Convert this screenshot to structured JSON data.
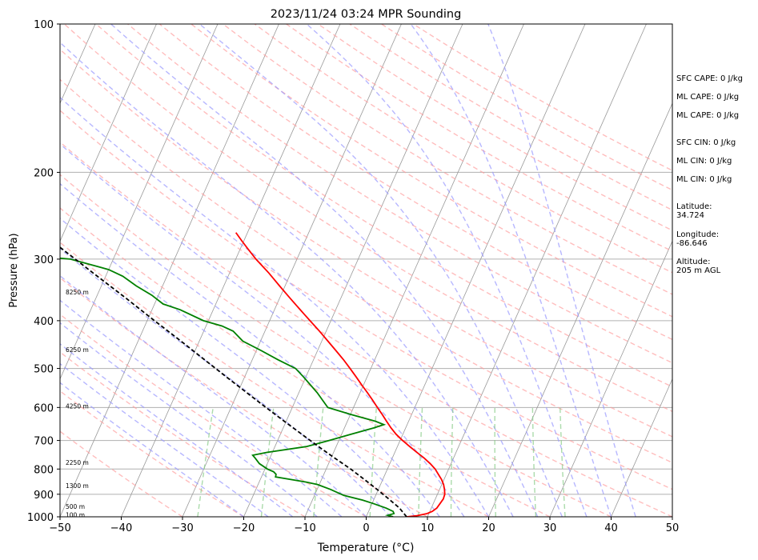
{
  "chart_data": {
    "type": "line",
    "subtype": "skew-t log-p sounding",
    "title": "2023/11/24 03:24 MPR Sounding",
    "xlabel": "Temperature (°C)",
    "ylabel": "Pressure (hPa)",
    "xlim": [
      -50,
      50
    ],
    "ylim": [
      1000,
      100
    ],
    "y_scale": "log",
    "x_ticks": [
      "−50",
      "−40",
      "−30",
      "−20",
      "−10",
      "0",
      "10",
      "20",
      "30",
      "40",
      "50"
    ],
    "y_ticks": [
      1000,
      900,
      800,
      700,
      600,
      500,
      400,
      300,
      200,
      100
    ],
    "grid": true,
    "colors": {
      "temperature": "#ff0000",
      "dewpoint": "#008000",
      "parcel": "#000000",
      "dry_adiabats": "#ff9999",
      "moist_adiabats": "#9999ff",
      "mixing_ratio": "#88cc88",
      "isotherms": "#999999"
    },
    "series": [
      {
        "key": "temperature",
        "pressure": [
          1000,
          995,
          985,
          975,
          960,
          940,
          920,
          900,
          880,
          860,
          840,
          820,
          800,
          780,
          760,
          740,
          720,
          700,
          680,
          660,
          640,
          620,
          600,
          580,
          560,
          540,
          520,
          500,
          480,
          460,
          440,
          420,
          400,
          380,
          360,
          340,
          320,
          300,
          285,
          275,
          265
        ],
        "temperature": [
          6.6,
          8.2,
          9.7,
          10.4,
          10.9,
          11.1,
          11.3,
          11.2,
          10.8,
          10.3,
          9.6,
          8.7,
          7.8,
          6.6,
          5.2,
          3.6,
          2.0,
          0.4,
          -1.1,
          -2.4,
          -3.6,
          -4.8,
          -6.1,
          -7.4,
          -8.8,
          -10.3,
          -11.8,
          -13.4,
          -15.1,
          -17.0,
          -19.0,
          -21.1,
          -23.4,
          -25.8,
          -28.3,
          -30.9,
          -33.6,
          -36.7,
          -38.9,
          -40.4,
          -41.9
        ]
      },
      {
        "key": "dewpoint",
        "pressure": [
          1000,
          993,
          985,
          975,
          960,
          940,
          925,
          905,
          880,
          860,
          850,
          840,
          830,
          820,
          810,
          800,
          780,
          760,
          750,
          740,
          720,
          700,
          680,
          660,
          650,
          640,
          620,
          600,
          560,
          520,
          500,
          480,
          460,
          440,
          420,
          410,
          400,
          380,
          370,
          355,
          340,
          325,
          315,
          300,
          293,
          287
        ],
        "temperature": [
          4.4,
          3.4,
          4.3,
          4.0,
          2.6,
          0.2,
          -1.8,
          -5.2,
          -7.8,
          -10.3,
          -12.4,
          -15.0,
          -17.7,
          -17.8,
          -18.4,
          -19.6,
          -21.3,
          -22.4,
          -23.0,
          -20.9,
          -14.8,
          -11.6,
          -8.5,
          -5.2,
          -3.8,
          -5.4,
          -9.9,
          -14.2,
          -17.0,
          -20.4,
          -22.3,
          -25.8,
          -29.2,
          -32.9,
          -35.2,
          -37.4,
          -40.8,
          -45.4,
          -48.6,
          -51.1,
          -54.3,
          -57.2,
          -60.0,
          -67.0,
          -77.0,
          -100.0
        ]
      },
      {
        "key": "parcel",
        "pressure": [
          1000,
          960,
          920,
          880,
          840,
          800,
          760,
          720,
          680,
          640,
          600,
          560,
          520,
          480,
          440,
          400,
          360,
          320,
          300,
          280,
          265
        ],
        "temperature": [
          6.6,
          4.8,
          2.4,
          -0.2,
          -3.0,
          -6.0,
          -9.4,
          -12.9,
          -16.5,
          -20.3,
          -24.3,
          -28.5,
          -33.0,
          -37.8,
          -43.0,
          -48.8,
          -55.1,
          -62.3,
          -66.2,
          -70.4,
          -73.8
        ]
      }
    ],
    "height_labels": [
      {
        "label": "100 m",
        "pressure": 990
      },
      {
        "label": "500 m",
        "pressure": 952
      },
      {
        "label": "1300 m",
        "pressure": 865
      },
      {
        "label": "2250 m",
        "pressure": 775
      },
      {
        "label": "4250 m",
        "pressure": 596
      },
      {
        "label": "6250 m",
        "pressure": 458
      },
      {
        "label": "8250 m",
        "pressure": 350
      }
    ]
  },
  "indices": [
    "SFC CAPE: 0 J/kg",
    "ML CAPE: 0 J/kg",
    "ML CAPE: 0 J/kg",
    "SFC CIN: 0 J/kg",
    "ML CIN: 0 J/kg",
    "ML CIN: 0 J/kg"
  ],
  "location": {
    "latitude": "Latitude:\n34.724",
    "longitude": "Longitude:\n-86.646",
    "altitude": "Altitude:\n205 m AGL"
  }
}
